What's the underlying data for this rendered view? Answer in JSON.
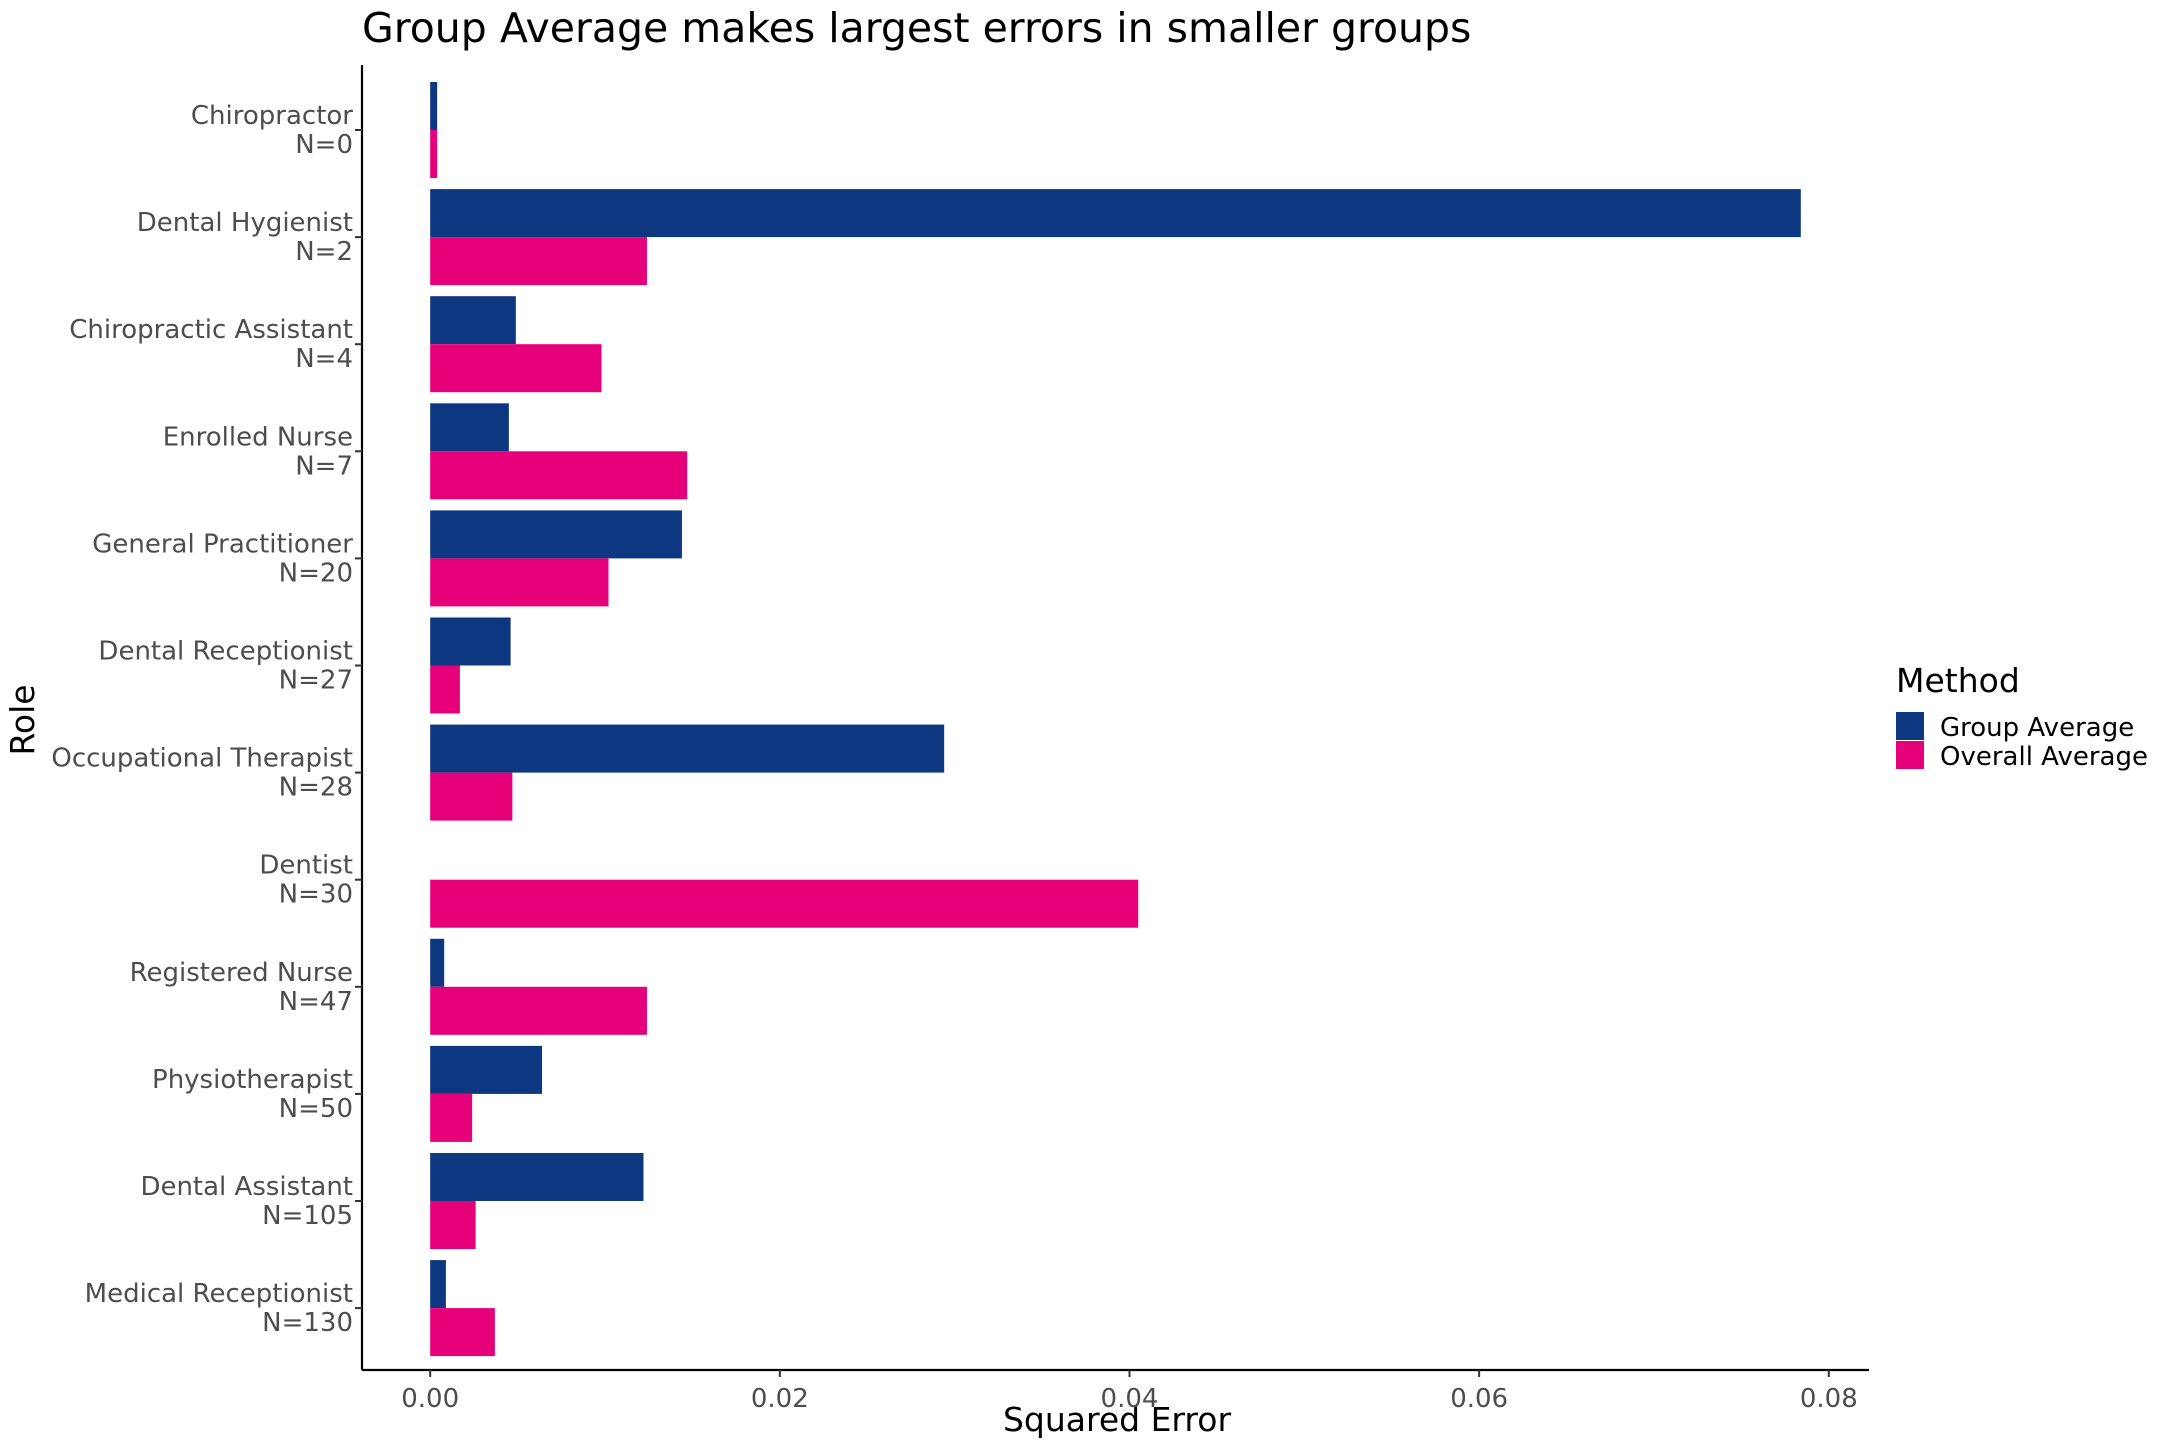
{
  "chart_data": {
    "type": "bar",
    "orientation": "horizontal",
    "title": "Group Average makes largest errors in smaller groups",
    "xlabel": "Squared Error",
    "ylabel": "Role",
    "xlim": [
      -0.0039,
      0.0823
    ],
    "xticks": [
      0.0,
      0.02,
      0.04,
      0.06,
      0.08
    ],
    "xtick_labels": [
      "0.00",
      "0.02",
      "0.04",
      "0.06",
      "0.08"
    ],
    "grid": false,
    "legend": {
      "title": "Method",
      "position": "right"
    },
    "categories": [
      {
        "role": "Chiropractor",
        "n": "N=0"
      },
      {
        "role": "Dental Hygienist",
        "n": "N=2"
      },
      {
        "role": "Chiropractic Assistant",
        "n": "N=4"
      },
      {
        "role": "Enrolled Nurse",
        "n": "N=7"
      },
      {
        "role": "General Practitioner",
        "n": "N=20"
      },
      {
        "role": "Dental Receptionist",
        "n": "N=27"
      },
      {
        "role": "Occupational Therapist",
        "n": "N=28"
      },
      {
        "role": "Dentist",
        "n": "N=30"
      },
      {
        "role": "Registered Nurse",
        "n": "N=47"
      },
      {
        "role": "Physiotherapist",
        "n": "N=50"
      },
      {
        "role": "Dental Assistant",
        "n": "N=105"
      },
      {
        "role": "Medical Receptionist",
        "n": "N=130"
      }
    ],
    "series": [
      {
        "name": "Group Average",
        "color": "#0e3782",
        "values": [
          0.0004,
          0.0784,
          0.0049,
          0.0045,
          0.0144,
          0.0046,
          0.0294,
          0.0,
          0.0008,
          0.0064,
          0.0122,
          0.0009
        ]
      },
      {
        "name": "Overall Average",
        "color": "#e6007a",
        "values": [
          0.0004,
          0.0124,
          0.0098,
          0.0147,
          0.0102,
          0.0017,
          0.0047,
          0.0405,
          0.0124,
          0.0024,
          0.0026,
          0.0037
        ]
      }
    ]
  }
}
